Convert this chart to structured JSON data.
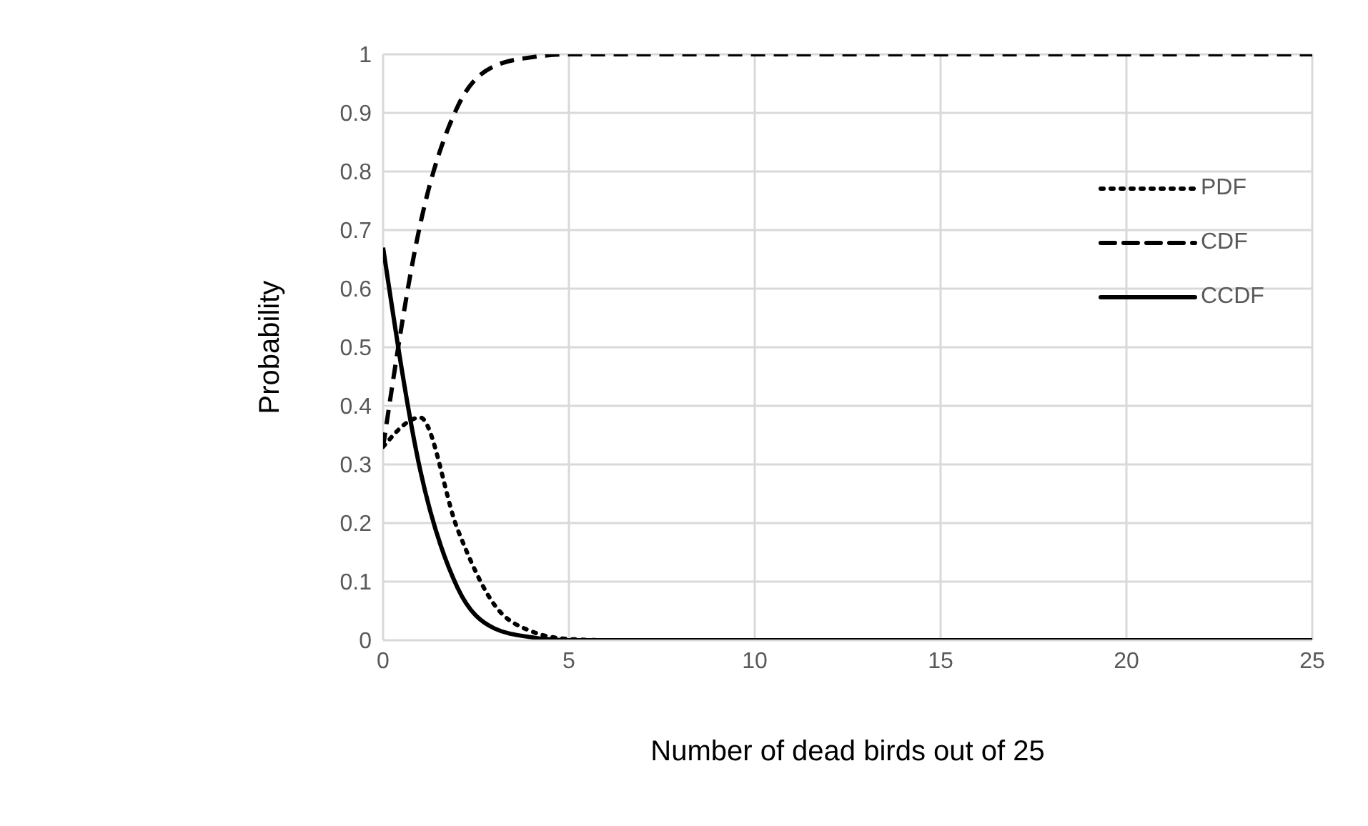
{
  "chart_data": {
    "type": "line",
    "xlabel": "Number of dead birds out of 25",
    "ylabel": "Probability",
    "x": [
      0,
      1,
      2,
      3,
      4,
      5,
      6,
      7,
      8,
      9,
      10,
      11,
      12,
      13,
      14,
      15,
      16,
      17,
      18,
      19,
      20,
      21,
      22,
      23,
      24,
      25
    ],
    "series": [
      {
        "name": "PDF",
        "color": "#000000",
        "line_style": "dotted",
        "values": [
          0.33,
          0.38,
          0.19,
          0.06,
          0.015,
          0.002,
          0,
          0,
          0,
          0,
          0,
          0,
          0,
          0,
          0,
          0,
          0,
          0,
          0,
          0,
          0,
          0,
          0,
          0,
          0,
          0
        ]
      },
      {
        "name": "CDF",
        "color": "#000000",
        "line_style": "dashed",
        "values": [
          0.33,
          0.71,
          0.91,
          0.98,
          0.995,
          1,
          1,
          1,
          1,
          1,
          1,
          1,
          1,
          1,
          1,
          1,
          1,
          1,
          1,
          1,
          1,
          1,
          1,
          1,
          1,
          1
        ]
      },
      {
        "name": "CCDF",
        "color": "#000000",
        "line_style": "solid",
        "values": [
          0.67,
          0.29,
          0.09,
          0.02,
          0.005,
          0,
          0,
          0,
          0,
          0,
          0,
          0,
          0,
          0,
          0,
          0,
          0,
          0,
          0,
          0,
          0,
          0,
          0,
          0,
          0,
          0
        ]
      }
    ],
    "xlim": [
      0,
      25
    ],
    "xticks": [
      0,
      5,
      10,
      15,
      20,
      25
    ],
    "ylim": [
      0,
      1
    ],
    "yticks": [
      0,
      0.1,
      0.2,
      0.3,
      0.4,
      0.5,
      0.6,
      0.7,
      0.8,
      0.9,
      1
    ],
    "grid": true,
    "legend": "right",
    "marker": "none"
  }
}
